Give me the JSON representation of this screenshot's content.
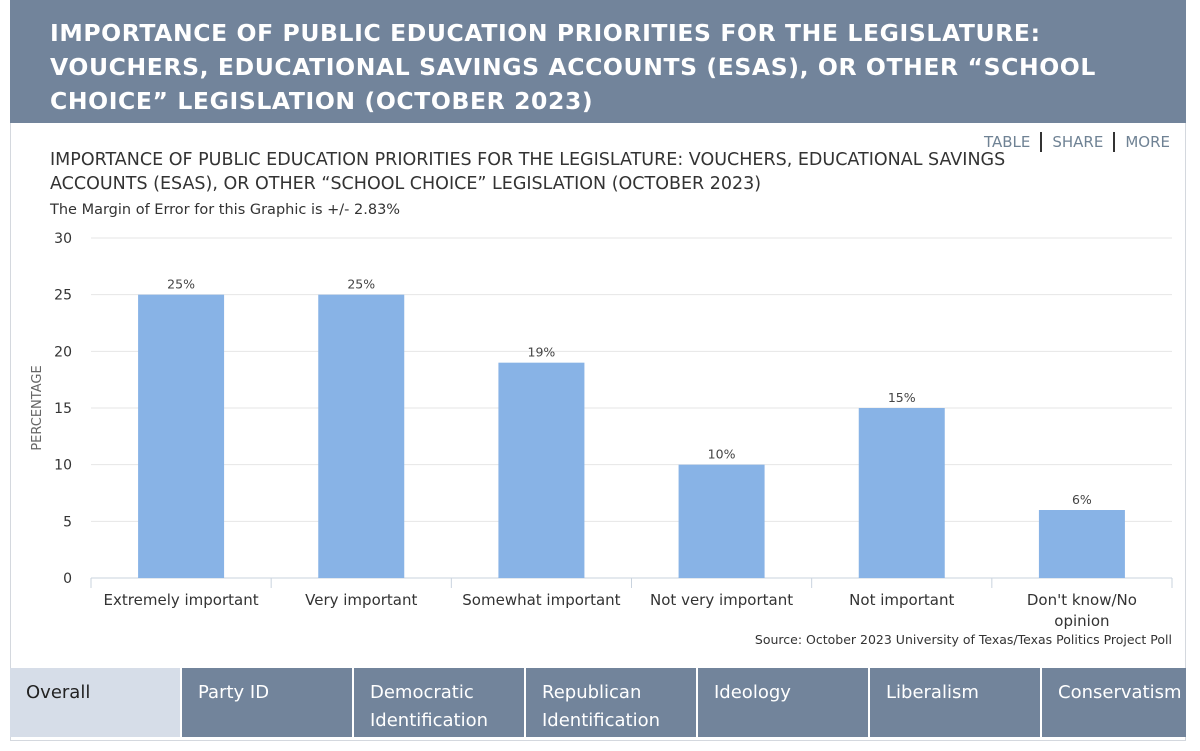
{
  "header": {
    "title": "IMPORTANCE OF PUBLIC EDUCATION PRIORITIES FOR THE LEGISLATURE: VOUCHERS, EDUCATIONAL SAVINGS ACCOUNTS (ESAS), OR OTHER “SCHOOL CHOICE” LEGISLATION (OCTOBER 2023)"
  },
  "links": {
    "table": "TABLE",
    "share": "SHARE",
    "more": "MORE"
  },
  "chart_data": {
    "type": "bar",
    "title": "IMPORTANCE OF PUBLIC EDUCATION PRIORITIES FOR THE LEGISLATURE: VOUCHERS, EDUCATIONAL SAVINGS ACCOUNTS (ESAS), OR OTHER “SCHOOL CHOICE” LEGISLATION (OCTOBER 2023)",
    "subtitle": "The Margin of Error for this Graphic is +/- 2.83%",
    "categories": [
      "Extremely important",
      "Very important",
      "Somewhat important",
      "Not very important",
      "Not important",
      "Don't know/No opinion"
    ],
    "category_lines": [
      [
        "Extremely important"
      ],
      [
        "Very important"
      ],
      [
        "Somewhat important"
      ],
      [
        "Not very important"
      ],
      [
        "Not important"
      ],
      [
        "Don't know/No",
        "opinion"
      ]
    ],
    "values": [
      25,
      25,
      19,
      10,
      15,
      6
    ],
    "data_labels": [
      "25%",
      "25%",
      "19%",
      "10%",
      "15%",
      "6%"
    ],
    "ylabel": "PERCENTAGE",
    "xlabel": "",
    "ylim": [
      0,
      30
    ],
    "yticks": [
      0,
      5,
      10,
      15,
      20,
      25,
      30
    ],
    "grid": true,
    "bar_color": "#88b3e6",
    "source": "Source: October 2023 University of Texas/Texas Politics Project Poll"
  },
  "tabs": [
    "Overall",
    "Party ID",
    "Democratic Identification",
    "Republican Identification",
    "Ideology",
    "Liberalism",
    "Conservatism"
  ],
  "active_tab": "Overall"
}
